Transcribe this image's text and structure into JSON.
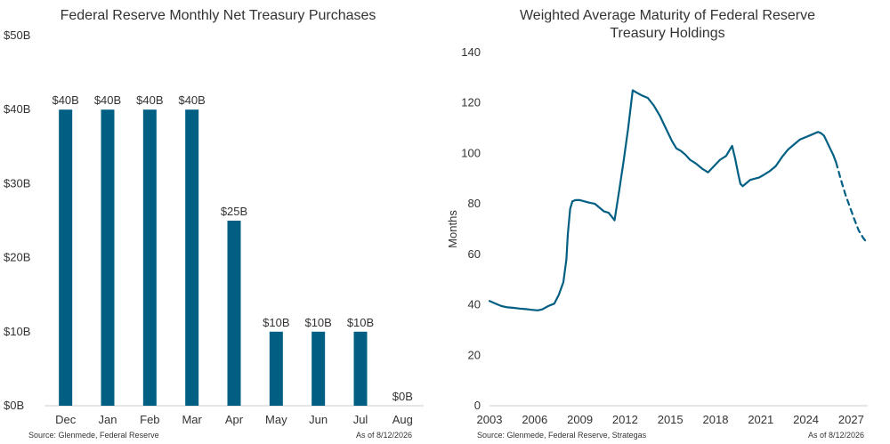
{
  "left_chart": {
    "footer_source": "Source: Glenmede, Federal Reserve",
    "footer_date": "As of 8/12/2026",
    "chart_data": {
      "type": "bar",
      "title": "Federal Reserve Monthly Net Treasury Purchases",
      "categories": [
        "Dec",
        "Jan",
        "Feb",
        "Mar",
        "Apr",
        "May",
        "Jun",
        "Jul",
        "Aug"
      ],
      "values": [
        40,
        40,
        40,
        40,
        25,
        10,
        10,
        10,
        0
      ],
      "data_labels": [
        "$40B",
        "$40B",
        "$40B",
        "$40B",
        "$25B",
        "$10B",
        "$10B",
        "$10B",
        "$0B"
      ],
      "y_ticks": [
        0,
        10,
        20,
        30,
        40,
        50
      ],
      "y_tick_labels": [
        "$0B",
        "$10B",
        "$20B",
        "$30B",
        "$40B",
        "$50B"
      ],
      "ylim": [
        0,
        50
      ],
      "xlabel": "",
      "ylabel": "",
      "grid": false,
      "bar_color": "#005f83"
    }
  },
  "right_chart": {
    "footer_source": "Source: Glenmede, Federal Reserve, Strategas",
    "footer_date": "As of 8/12/2026",
    "chart_data": {
      "type": "line",
      "title": "Weighted Average Maturity of Federal Reserve Treasury Holdings",
      "title_lines": [
        "Weighted Average Maturity of Federal Reserve",
        "Treasury Holdings"
      ],
      "xlabel": "",
      "ylabel": "Months",
      "xlim": [
        2003,
        2028.1
      ],
      "ylim": [
        0,
        140
      ],
      "x_ticks": [
        2003,
        2006,
        2009,
        2012,
        2015,
        2018,
        2021,
        2024,
        2027
      ],
      "x_tick_labels": [
        "2003",
        "2006",
        "2009",
        "2012",
        "2015",
        "2018",
        "2021",
        "2024",
        "2027"
      ],
      "y_ticks": [
        0,
        20,
        40,
        60,
        80,
        100,
        120,
        140
      ],
      "y_tick_labels": [
        "0",
        "20",
        "40",
        "60",
        "80",
        "100",
        "120",
        "140"
      ],
      "grid": false,
      "line_color": "#005f83",
      "series": [
        {
          "style": "solid",
          "x": [
            2003.0,
            2003.4,
            2003.8,
            2004.2,
            2004.6,
            2005.0,
            2005.4,
            2005.8,
            2006.2,
            2006.5,
            2006.9,
            2007.3,
            2007.6,
            2007.9,
            2008.1,
            2008.2,
            2008.35,
            2008.5,
            2008.7,
            2009.0,
            2009.3,
            2009.6,
            2010.0,
            2010.3,
            2010.6,
            2010.9,
            2011.1,
            2011.3,
            2011.6,
            2011.9,
            2012.2,
            2012.5,
            2012.8,
            2013.1,
            2013.5,
            2013.9,
            2014.3,
            2014.7,
            2015.1,
            2015.4,
            2015.7,
            2016.0,
            2016.3,
            2016.7,
            2017.1,
            2017.5,
            2017.9,
            2018.3,
            2018.7,
            2019.1,
            2019.3,
            2019.5,
            2019.65,
            2019.8,
            2020.0,
            2020.3,
            2020.6,
            2020.9,
            2021.2,
            2021.6,
            2022.0,
            2022.4,
            2022.8,
            2023.2,
            2023.6,
            2024.0,
            2024.4,
            2024.8,
            2025.0,
            2025.2,
            2025.4,
            2025.6,
            2025.8,
            2026.0
          ],
          "y": [
            41.5,
            40.5,
            39.5,
            39.0,
            38.8,
            38.5,
            38.3,
            38.0,
            37.8,
            38.2,
            39.5,
            40.5,
            44.0,
            49.0,
            58.0,
            68.0,
            78.0,
            81.0,
            81.5,
            81.5,
            81.0,
            80.5,
            80.0,
            78.5,
            77.0,
            76.5,
            75.0,
            73.5,
            85.0,
            97.0,
            110.0,
            125.0,
            124.0,
            123.0,
            122.0,
            119.0,
            115.0,
            110.0,
            105.0,
            102.0,
            101.0,
            99.5,
            97.5,
            96.0,
            94.0,
            92.5,
            95.0,
            97.5,
            99.0,
            103.0,
            98.0,
            92.0,
            88.0,
            87.0,
            88.0,
            89.5,
            90.0,
            90.5,
            91.5,
            93.0,
            95.0,
            98.5,
            101.5,
            103.5,
            105.5,
            106.5,
            107.5,
            108.5,
            108.0,
            107.0,
            104.5,
            102.0,
            99.5,
            96.5
          ]
        },
        {
          "style": "dashed",
          "x": [
            2026.0,
            2026.3,
            2026.6,
            2026.9,
            2027.2,
            2027.5,
            2027.8,
            2028.0
          ],
          "y": [
            96.5,
            90.0,
            84.0,
            79.0,
            74.0,
            69.5,
            66.5,
            65.0
          ]
        }
      ]
    }
  }
}
